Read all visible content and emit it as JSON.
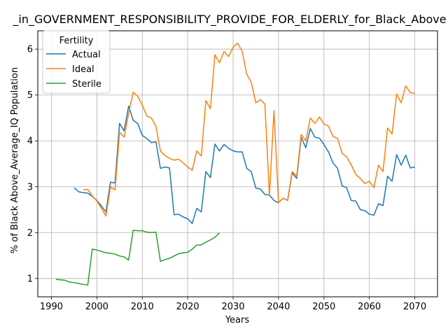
{
  "chart_data": {
    "type": "line",
    "title": "_in_GOVERNMENT_RESPONSIBILITY_PROVIDE_FOR_ELDERLY_for_Black_Above",
    "xlabel": "Years",
    "ylabel": "% of Black Above_Average_IQ Population",
    "xlim": [
      1987,
      2075
    ],
    "ylim": [
      0.6,
      6.4
    ],
    "x_ticks": [
      1990,
      2000,
      2010,
      2020,
      2030,
      2040,
      2050,
      2060,
      2070
    ],
    "y_ticks": [
      1,
      2,
      3,
      4,
      5,
      6
    ],
    "grid": true,
    "legend": {
      "title": "Fertility",
      "placement": "top-left"
    },
    "series": [
      {
        "name": "Actual",
        "color": "#1f77b4",
        "points": [
          [
            1995,
            2.98
          ],
          [
            1996,
            2.89
          ],
          [
            1997,
            2.87
          ],
          [
            1998,
            2.86
          ],
          [
            1999,
            2.79
          ],
          [
            2000,
            2.7
          ],
          [
            2001,
            2.58
          ],
          [
            2002,
            2.45
          ],
          [
            2003,
            3.1
          ],
          [
            2004,
            3.08
          ],
          [
            2005,
            4.38
          ],
          [
            2006,
            4.22
          ],
          [
            2007,
            4.76
          ],
          [
            2008,
            4.45
          ],
          [
            2009,
            4.38
          ],
          [
            2010,
            4.12
          ],
          [
            2011,
            4.05
          ],
          [
            2012,
            3.96
          ],
          [
            2013,
            3.98
          ],
          [
            2014,
            3.4
          ],
          [
            2015,
            3.43
          ],
          [
            2016,
            3.41
          ],
          [
            2017,
            2.39
          ],
          [
            2018,
            2.4
          ],
          [
            2019,
            2.34
          ],
          [
            2020,
            2.3
          ],
          [
            2021,
            2.2
          ],
          [
            2022,
            2.53
          ],
          [
            2023,
            2.45
          ],
          [
            2024,
            3.33
          ],
          [
            2025,
            3.2
          ],
          [
            2026,
            3.93
          ],
          [
            2027,
            3.78
          ],
          [
            2028,
            3.92
          ],
          [
            2029,
            3.84
          ],
          [
            2030,
            3.78
          ],
          [
            2031,
            3.76
          ],
          [
            2032,
            3.76
          ],
          [
            2033,
            3.4
          ],
          [
            2034,
            3.33
          ],
          [
            2035,
            2.97
          ],
          [
            2036,
            2.95
          ],
          [
            2037,
            2.83
          ],
          [
            2038,
            2.82
          ],
          [
            2039,
            2.7
          ],
          [
            2040,
            2.65
          ],
          [
            2041,
            2.75
          ],
          [
            2042,
            2.7
          ],
          [
            2043,
            3.3
          ],
          [
            2044,
            3.18
          ],
          [
            2045,
            4.08
          ],
          [
            2046,
            3.85
          ],
          [
            2047,
            4.27
          ],
          [
            2048,
            4.08
          ],
          [
            2049,
            4.06
          ],
          [
            2050,
            3.92
          ],
          [
            2051,
            3.76
          ],
          [
            2052,
            3.52
          ],
          [
            2053,
            3.4
          ],
          [
            2054,
            3.02
          ],
          [
            2055,
            2.98
          ],
          [
            2056,
            2.7
          ],
          [
            2057,
            2.69
          ],
          [
            2058,
            2.5
          ],
          [
            2059,
            2.48
          ],
          [
            2060,
            2.4
          ],
          [
            2061,
            2.38
          ],
          [
            2062,
            2.63
          ],
          [
            2063,
            2.59
          ],
          [
            2064,
            3.23
          ],
          [
            2065,
            3.12
          ],
          [
            2066,
            3.7
          ],
          [
            2067,
            3.47
          ],
          [
            2068,
            3.69
          ],
          [
            2069,
            3.41
          ],
          [
            2070,
            3.43
          ]
        ]
      },
      {
        "name": "Ideal",
        "color": "#ff7f0e",
        "points": [
          [
            1997,
            2.94
          ],
          [
            1998,
            2.94
          ],
          [
            1999,
            2.8
          ],
          [
            2000,
            2.69
          ],
          [
            2001,
            2.53
          ],
          [
            2002,
            2.36
          ],
          [
            2003,
            3.0
          ],
          [
            2004,
            2.93
          ],
          [
            2005,
            4.19
          ],
          [
            2006,
            4.08
          ],
          [
            2007,
            4.6
          ],
          [
            2008,
            5.06
          ],
          [
            2009,
            4.97
          ],
          [
            2010,
            4.78
          ],
          [
            2011,
            4.54
          ],
          [
            2012,
            4.5
          ],
          [
            2013,
            4.32
          ],
          [
            2014,
            3.78
          ],
          [
            2015,
            3.68
          ],
          [
            2016,
            3.62
          ],
          [
            2017,
            3.58
          ],
          [
            2018,
            3.6
          ],
          [
            2019,
            3.52
          ],
          [
            2020,
            3.43
          ],
          [
            2021,
            3.36
          ],
          [
            2022,
            3.78
          ],
          [
            2023,
            3.67
          ],
          [
            2024,
            4.88
          ],
          [
            2025,
            4.7
          ],
          [
            2026,
            5.88
          ],
          [
            2027,
            5.7
          ],
          [
            2028,
            5.95
          ],
          [
            2029,
            5.84
          ],
          [
            2030,
            6.04
          ],
          [
            2031,
            6.13
          ],
          [
            2032,
            5.95
          ],
          [
            2033,
            5.45
          ],
          [
            2034,
            5.28
          ],
          [
            2035,
            4.83
          ],
          [
            2036,
            4.9
          ],
          [
            2037,
            4.8
          ],
          [
            2038,
            2.8
          ],
          [
            2039,
            4.66
          ],
          [
            2040,
            2.65
          ],
          [
            2041,
            2.75
          ],
          [
            2042,
            2.7
          ],
          [
            2043,
            3.33
          ],
          [
            2044,
            3.23
          ],
          [
            2045,
            4.14
          ],
          [
            2046,
            4.0
          ],
          [
            2047,
            4.5
          ],
          [
            2048,
            4.38
          ],
          [
            2049,
            4.52
          ],
          [
            2050,
            4.37
          ],
          [
            2051,
            4.32
          ],
          [
            2052,
            4.1
          ],
          [
            2053,
            4.05
          ],
          [
            2054,
            3.73
          ],
          [
            2055,
            3.65
          ],
          [
            2056,
            3.48
          ],
          [
            2057,
            3.27
          ],
          [
            2058,
            3.18
          ],
          [
            2059,
            3.07
          ],
          [
            2060,
            3.12
          ],
          [
            2061,
            2.98
          ],
          [
            2062,
            3.47
          ],
          [
            2063,
            3.33
          ],
          [
            2064,
            4.28
          ],
          [
            2065,
            4.15
          ],
          [
            2066,
            5.02
          ],
          [
            2067,
            4.83
          ],
          [
            2068,
            5.2
          ],
          [
            2069,
            5.05
          ],
          [
            2070,
            5.04
          ]
        ]
      },
      {
        "name": "Sterile",
        "color": "#2ca02c",
        "points": [
          [
            1991,
            0.98
          ],
          [
            1992,
            0.97
          ],
          [
            1993,
            0.96
          ],
          [
            1994,
            0.92
          ],
          [
            1995,
            0.91
          ],
          [
            1996,
            0.89
          ],
          [
            1997,
            0.87
          ],
          [
            1998,
            0.86
          ],
          [
            1999,
            1.64
          ],
          [
            2000,
            1.62
          ],
          [
            2001,
            1.59
          ],
          [
            2002,
            1.56
          ],
          [
            2003,
            1.55
          ],
          [
            2004,
            1.53
          ],
          [
            2005,
            1.49
          ],
          [
            2006,
            1.47
          ],
          [
            2007,
            1.4
          ],
          [
            2008,
            2.05
          ],
          [
            2009,
            2.04
          ],
          [
            2010,
            2.04
          ],
          [
            2011,
            2.01
          ],
          [
            2012,
            2.0
          ],
          [
            2013,
            2.01
          ],
          [
            2014,
            1.37
          ],
          [
            2015,
            1.41
          ],
          [
            2016,
            1.44
          ],
          [
            2017,
            1.49
          ],
          [
            2018,
            1.54
          ],
          [
            2019,
            1.56
          ],
          [
            2020,
            1.57
          ],
          [
            2021,
            1.64
          ],
          [
            2022,
            1.73
          ],
          [
            2023,
            1.73
          ],
          [
            2024,
            1.79
          ],
          [
            2025,
            1.84
          ],
          [
            2026,
            1.9
          ],
          [
            2027,
            1.99
          ]
        ]
      }
    ]
  }
}
